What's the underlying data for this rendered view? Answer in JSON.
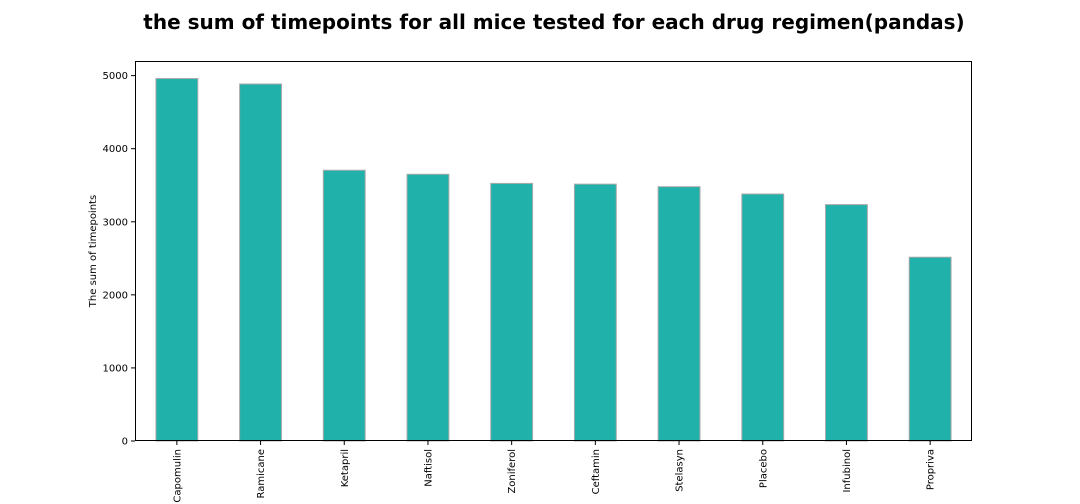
{
  "chart_data": {
    "type": "bar",
    "title": "the sum of timepoints for all mice tested for each drug regimen(pandas)",
    "xlabel": "",
    "ylabel": "The sum of timepoints",
    "categories": [
      "Capomulin",
      "Ramicane",
      "Ketapril",
      "Naftisol",
      "Zoniferol",
      "Ceftamin",
      "Stelasyn",
      "Placebo",
      "Infubinol",
      "Propriva"
    ],
    "values": [
      4960,
      4885,
      3705,
      3650,
      3525,
      3515,
      3480,
      3380,
      3235,
      2515
    ],
    "ylim": [
      0,
      5200
    ],
    "yticks": [
      0,
      1000,
      2000,
      3000,
      4000,
      5000
    ],
    "bar_color": "#20b2aa",
    "bar_edge_color": "#a9a9a9",
    "grid": false,
    "legend": "none"
  }
}
